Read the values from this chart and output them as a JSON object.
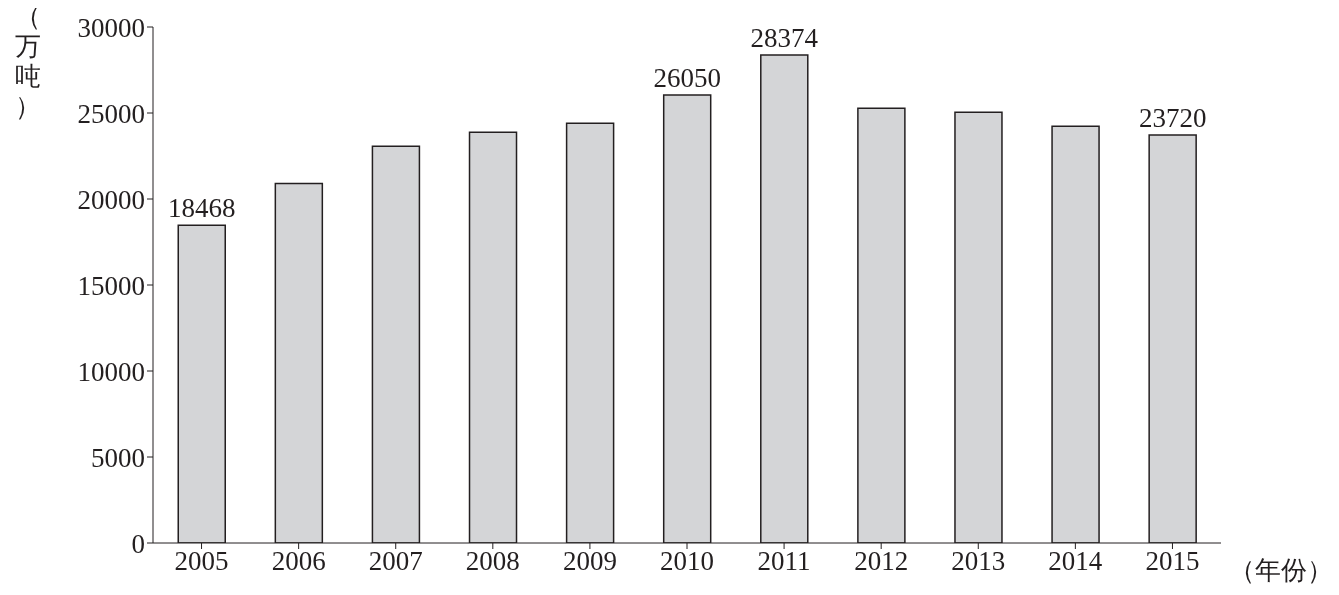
{
  "chart_data": {
    "type": "bar",
    "ylabel": "（万吨）",
    "xlabel": "（年份）",
    "categories": [
      "2005",
      "2006",
      "2007",
      "2008",
      "2009",
      "2010",
      "2011",
      "2012",
      "2013",
      "2014",
      "2015"
    ],
    "values": [
      18468,
      20900,
      23060,
      23880,
      24400,
      26050,
      28374,
      25280,
      25040,
      24230,
      23720
    ],
    "value_labels": [
      "18468",
      null,
      null,
      null,
      null,
      "26050",
      "28374",
      null,
      null,
      null,
      "23720"
    ],
    "color": "#d4d5d7",
    "ylim": [
      0,
      30000
    ],
    "yticks": [
      0,
      5000,
      10000,
      15000,
      20000,
      25000,
      30000
    ],
    "grid": false,
    "legend": false
  }
}
